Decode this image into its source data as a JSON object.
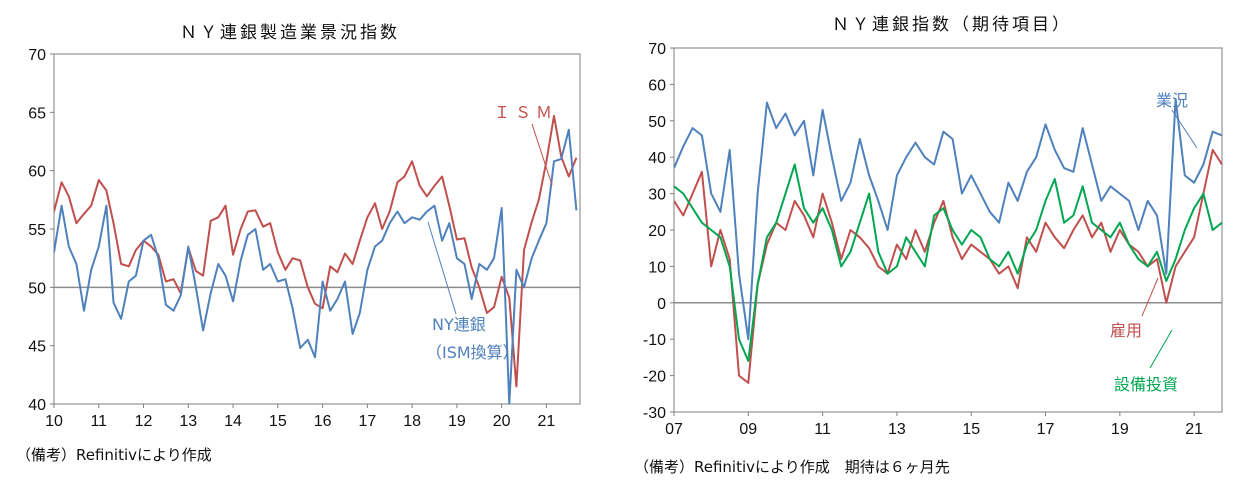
{
  "charts": [
    {
      "type": "line",
      "title": "ＮＹ連銀製造業景況指数",
      "note": "（備考）Refinitivにより作成",
      "ylim": [
        40,
        70
      ],
      "yticks": [
        "40",
        "45",
        "50",
        "55",
        "60",
        "65",
        "70"
      ],
      "xticks": [
        "10",
        "11",
        "12",
        "13",
        "14",
        "15",
        "16",
        "17",
        "18",
        "19",
        "20",
        "21"
      ],
      "xstart": 2010,
      "xend": 2021.75,
      "reference_line": 50,
      "annotations": [
        {
          "text": "ＩＳＭ",
          "color": "#c0504d"
        },
        {
          "text": "NY連銀",
          "color": "#4f81bd"
        },
        {
          "text": "（ISM換算）",
          "color": "#4f81bd"
        }
      ],
      "series": [
        {
          "name": "ＩＳＭ",
          "color": "#c0504d",
          "x": [
            2010.0,
            2010.17,
            2010.33,
            2010.5,
            2010.67,
            2010.83,
            2011.0,
            2011.17,
            2011.33,
            2011.5,
            2011.67,
            2011.83,
            2012.0,
            2012.17,
            2012.33,
            2012.5,
            2012.67,
            2012.83,
            2013.0,
            2013.17,
            2013.33,
            2013.5,
            2013.67,
            2013.83,
            2014.0,
            2014.17,
            2014.33,
            2014.5,
            2014.67,
            2014.83,
            2015.0,
            2015.17,
            2015.33,
            2015.5,
            2015.67,
            2015.83,
            2016.0,
            2016.17,
            2016.33,
            2016.5,
            2016.67,
            2016.83,
            2017.0,
            2017.17,
            2017.33,
            2017.5,
            2017.67,
            2017.83,
            2018.0,
            2018.17,
            2018.33,
            2018.5,
            2018.67,
            2018.83,
            2019.0,
            2019.17,
            2019.33,
            2019.5,
            2019.67,
            2019.83,
            2020.0,
            2020.17,
            2020.33,
            2020.5,
            2020.67,
            2020.83,
            2021.0,
            2021.17,
            2021.33,
            2021.5,
            2021.67
          ],
          "values": [
            56.5,
            59.0,
            57.8,
            55.5,
            56.3,
            57.0,
            59.2,
            58.3,
            55.5,
            52.0,
            51.8,
            53.2,
            54.0,
            53.5,
            52.8,
            50.5,
            50.7,
            49.5,
            53.4,
            51.4,
            51.0,
            55.7,
            56.0,
            57.0,
            52.8,
            55.0,
            56.5,
            56.6,
            55.2,
            55.5,
            53.0,
            51.5,
            52.5,
            52.3,
            50.0,
            48.6,
            48.2,
            51.8,
            51.3,
            52.9,
            52.0,
            54.0,
            56.0,
            57.2,
            55.0,
            56.5,
            59.0,
            59.5,
            60.8,
            58.7,
            57.8,
            58.7,
            59.5,
            57.0,
            54.1,
            54.2,
            51.7,
            50.0,
            47.8,
            48.3,
            50.9,
            49.1,
            41.5,
            53.2,
            55.6,
            57.5,
            60.8,
            64.7,
            61.2,
            59.5,
            61.1
          ]
        },
        {
          "name": "NY連銀（ISM換算）",
          "color": "#4f81bd",
          "x": [
            2010.0,
            2010.17,
            2010.33,
            2010.5,
            2010.67,
            2010.83,
            2011.0,
            2011.17,
            2011.33,
            2011.5,
            2011.67,
            2011.83,
            2012.0,
            2012.17,
            2012.33,
            2012.5,
            2012.67,
            2012.83,
            2013.0,
            2013.17,
            2013.33,
            2013.5,
            2013.67,
            2013.83,
            2014.0,
            2014.17,
            2014.33,
            2014.5,
            2014.67,
            2014.83,
            2015.0,
            2015.17,
            2015.33,
            2015.5,
            2015.67,
            2015.83,
            2016.0,
            2016.17,
            2016.33,
            2016.5,
            2016.67,
            2016.83,
            2017.0,
            2017.17,
            2017.33,
            2017.5,
            2017.67,
            2017.83,
            2018.0,
            2018.17,
            2018.33,
            2018.5,
            2018.67,
            2018.83,
            2019.0,
            2019.17,
            2019.33,
            2019.5,
            2019.67,
            2019.83,
            2020.0,
            2020.17,
            2020.33,
            2020.5,
            2020.67,
            2020.83,
            2021.0,
            2021.17,
            2021.33,
            2021.5,
            2021.67
          ],
          "values": [
            53.0,
            57.0,
            53.5,
            52.0,
            48.0,
            51.5,
            53.5,
            57.0,
            48.7,
            47.3,
            50.5,
            51.0,
            54.0,
            54.5,
            52.5,
            48.5,
            48.0,
            49.3,
            53.5,
            50.0,
            46.3,
            49.5,
            52.0,
            51.0,
            48.8,
            52.3,
            54.5,
            55.0,
            51.5,
            52.0,
            50.5,
            50.7,
            48.2,
            44.8,
            45.5,
            44.0,
            50.5,
            48.0,
            49.0,
            50.5,
            46.0,
            47.8,
            51.5,
            53.5,
            54.0,
            55.5,
            56.5,
            55.5,
            56.0,
            55.8,
            56.5,
            57.0,
            54.0,
            55.5,
            52.5,
            52.0,
            49.0,
            52.0,
            51.5,
            52.5,
            56.8,
            40.0,
            51.5,
            50.0,
            52.5,
            54.0,
            55.5,
            60.8,
            61.0,
            63.5,
            56.6
          ]
        }
      ]
    },
    {
      "type": "line",
      "title": "ＮＹ連銀指数（期待項目）",
      "note": "（備考）Refinitivにより作成　期待は６ヶ月先",
      "ylim": [
        -30,
        70
      ],
      "yticks": [
        "-30",
        "-20",
        "-10",
        "0",
        "10",
        "20",
        "30",
        "40",
        "50",
        "60",
        "70"
      ],
      "xticks": [
        "07",
        "09",
        "11",
        "13",
        "15",
        "17",
        "19",
        "21"
      ],
      "xstart": 2007,
      "xend": 2021.75,
      "reference_line": 0,
      "annotations": [
        {
          "text": "業況",
          "color": "#4f81bd"
        },
        {
          "text": "雇用",
          "color": "#c0504d"
        },
        {
          "text": "設備投資",
          "color": "#00a650"
        }
      ],
      "series": [
        {
          "name": "業況",
          "color": "#4f81bd",
          "x": [
            2007.0,
            2007.25,
            2007.5,
            2007.75,
            2008.0,
            2008.25,
            2008.5,
            2008.75,
            2009.0,
            2009.25,
            2009.5,
            2009.75,
            2010.0,
            2010.25,
            2010.5,
            2010.75,
            2011.0,
            2011.25,
            2011.5,
            2011.75,
            2012.0,
            2012.25,
            2012.5,
            2012.75,
            2013.0,
            2013.25,
            2013.5,
            2013.75,
            2014.0,
            2014.25,
            2014.5,
            2014.75,
            2015.0,
            2015.25,
            2015.5,
            2015.75,
            2016.0,
            2016.25,
            2016.5,
            2016.75,
            2017.0,
            2017.25,
            2017.5,
            2017.75,
            2018.0,
            2018.25,
            2018.5,
            2018.75,
            2019.0,
            2019.25,
            2019.5,
            2019.75,
            2020.0,
            2020.25,
            2020.5,
            2020.75,
            2021.0,
            2021.25,
            2021.5,
            2021.75
          ],
          "values": [
            37,
            43,
            48,
            46,
            30,
            25,
            42,
            8,
            -10,
            30,
            55,
            48,
            52,
            46,
            50,
            35,
            53,
            40,
            28,
            33,
            45,
            35,
            28,
            20,
            35,
            40,
            44,
            40,
            38,
            47,
            45,
            30,
            35,
            30,
            25,
            22,
            33,
            28,
            36,
            40,
            49,
            42,
            37,
            36,
            48,
            38,
            28,
            32,
            30,
            28,
            20,
            28,
            24,
            8,
            56,
            35,
            33,
            38,
            47,
            46
          ]
        },
        {
          "name": "雇用",
          "color": "#c0504d",
          "x": [
            2007.0,
            2007.25,
            2007.5,
            2007.75,
            2008.0,
            2008.25,
            2008.5,
            2008.75,
            2009.0,
            2009.25,
            2009.5,
            2009.75,
            2010.0,
            2010.25,
            2010.5,
            2010.75,
            2011.0,
            2011.25,
            2011.5,
            2011.75,
            2012.0,
            2012.25,
            2012.5,
            2012.75,
            2013.0,
            2013.25,
            2013.5,
            2013.75,
            2014.0,
            2014.25,
            2014.5,
            2014.75,
            2015.0,
            2015.25,
            2015.5,
            2015.75,
            2016.0,
            2016.25,
            2016.5,
            2016.75,
            2017.0,
            2017.25,
            2017.5,
            2017.75,
            2018.0,
            2018.25,
            2018.5,
            2018.75,
            2019.0,
            2019.25,
            2019.5,
            2019.75,
            2020.0,
            2020.25,
            2020.5,
            2020.75,
            2021.0,
            2021.25,
            2021.5,
            2021.75
          ],
          "values": [
            28,
            24,
            30,
            36,
            10,
            20,
            12,
            -20,
            -22,
            5,
            16,
            22,
            20,
            28,
            24,
            18,
            30,
            22,
            12,
            20,
            18,
            15,
            10,
            8,
            16,
            12,
            20,
            14,
            22,
            28,
            18,
            12,
            16,
            14,
            12,
            8,
            10,
            4,
            18,
            14,
            22,
            18,
            15,
            20,
            24,
            18,
            22,
            14,
            20,
            16,
            14,
            10,
            12,
            0,
            10,
            14,
            18,
            30,
            42,
            38
          ]
        },
        {
          "name": "設備投資",
          "color": "#00a650",
          "x": [
            2007.0,
            2007.25,
            2007.5,
            2007.75,
            2008.0,
            2008.25,
            2008.5,
            2008.75,
            2009.0,
            2009.25,
            2009.5,
            2009.75,
            2010.0,
            2010.25,
            2010.5,
            2010.75,
            2011.0,
            2011.25,
            2011.5,
            2011.75,
            2012.0,
            2012.25,
            2012.5,
            2012.75,
            2013.0,
            2013.25,
            2013.5,
            2013.75,
            2014.0,
            2014.25,
            2014.5,
            2014.75,
            2015.0,
            2015.25,
            2015.5,
            2015.75,
            2016.0,
            2016.25,
            2016.5,
            2016.75,
            2017.0,
            2017.25,
            2017.5,
            2017.75,
            2018.0,
            2018.25,
            2018.5,
            2018.75,
            2019.0,
            2019.25,
            2019.5,
            2019.75,
            2020.0,
            2020.25,
            2020.5,
            2020.75,
            2021.0,
            2021.25,
            2021.5,
            2021.75
          ],
          "values": [
            32,
            30,
            26,
            22,
            20,
            18,
            10,
            -10,
            -16,
            5,
            18,
            22,
            30,
            38,
            26,
            22,
            26,
            20,
            10,
            14,
            22,
            30,
            14,
            8,
            10,
            18,
            14,
            10,
            24,
            26,
            20,
            16,
            20,
            18,
            12,
            10,
            14,
            8,
            16,
            20,
            28,
            34,
            22,
            24,
            32,
            22,
            20,
            18,
            22,
            16,
            12,
            10,
            14,
            6,
            12,
            20,
            26,
            30,
            20,
            22
          ]
        }
      ]
    }
  ]
}
